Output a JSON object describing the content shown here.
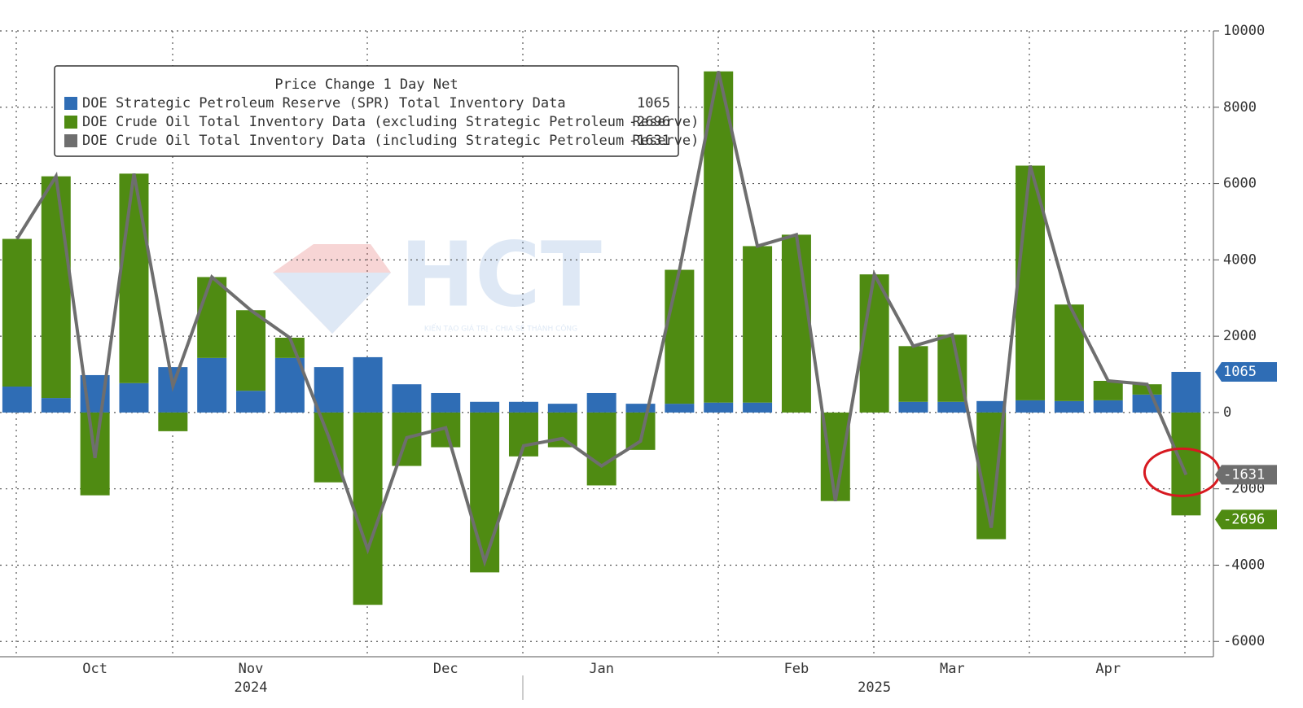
{
  "chart_data": {
    "type": "bar",
    "stacked": true,
    "legend_title": "Price Change 1 Day Net",
    "watermark": "HCT",
    "watermark_tagline": "KIẾN TẠO GIÁ TRỊ - CHIA SẺ THÀNH CÔNG",
    "categories": [
      null,
      null,
      "Oct",
      null,
      null,
      null,
      "Nov",
      null,
      null,
      null,
      null,
      "Dec",
      null,
      null,
      null,
      "Jan",
      null,
      null,
      null,
      null,
      "Feb",
      null,
      null,
      null,
      "Mar",
      null,
      null,
      null,
      "Apr",
      null,
      null
    ],
    "year_labels": [
      null,
      null,
      null,
      null,
      null,
      null,
      "2024",
      null,
      null,
      null,
      null,
      null,
      null,
      null,
      null,
      null,
      null,
      null,
      null,
      null,
      null,
      null,
      "2025",
      null,
      null,
      null,
      null,
      null,
      null,
      null,
      null
    ],
    "series": [
      {
        "name": "DOE Strategic Petroleum Reserve (SPR) Total Inventory Data",
        "color": "#2f6db5",
        "kind": "bar",
        "values": [
          680,
          380,
          980,
          770,
          1190,
          1430,
          570,
          1430,
          1190,
          1450,
          740,
          510,
          280,
          280,
          230,
          510,
          230,
          230,
          260,
          260,
          0,
          0,
          0,
          280,
          280,
          300,
          320,
          300,
          320,
          470,
          1065
        ]
      },
      {
        "name": "DOE Crude Oil Total Inventory Data (excluding Strategic Petroleum Reserve)",
        "color": "#4f8b12",
        "kind": "bar",
        "values": [
          3870,
          5810,
          -2170,
          5490,
          -490,
          2120,
          2110,
          530,
          -1830,
          -5040,
          -1400,
          -910,
          -4190,
          -1150,
          -910,
          -1910,
          -980,
          3510,
          8680,
          4100,
          4660,
          -2320,
          3620,
          1460,
          1760,
          -3320,
          6150,
          2530,
          510,
          270,
          -2696
        ]
      },
      {
        "name": "DOE Crude Oil Total Inventory Data (including Strategic Petroleum Reserve)",
        "color": "#6e6e6e",
        "kind": "line",
        "values": [
          4550,
          6190,
          -1190,
          6260,
          700,
          3550,
          2680,
          1960,
          -640,
          -3590,
          -660,
          -400,
          -3910,
          -870,
          -680,
          -1400,
          -750,
          3740,
          8940,
          4360,
          4660,
          -2320,
          3620,
          1740,
          2040,
          -3020,
          6470,
          2830,
          830,
          740,
          -1631
        ]
      }
    ],
    "ylim": [
      -6400,
      10000
    ],
    "yticks": [
      -6000,
      -4000,
      -2000,
      0,
      2000,
      4000,
      6000,
      8000,
      10000
    ],
    "grid": true
  }
}
